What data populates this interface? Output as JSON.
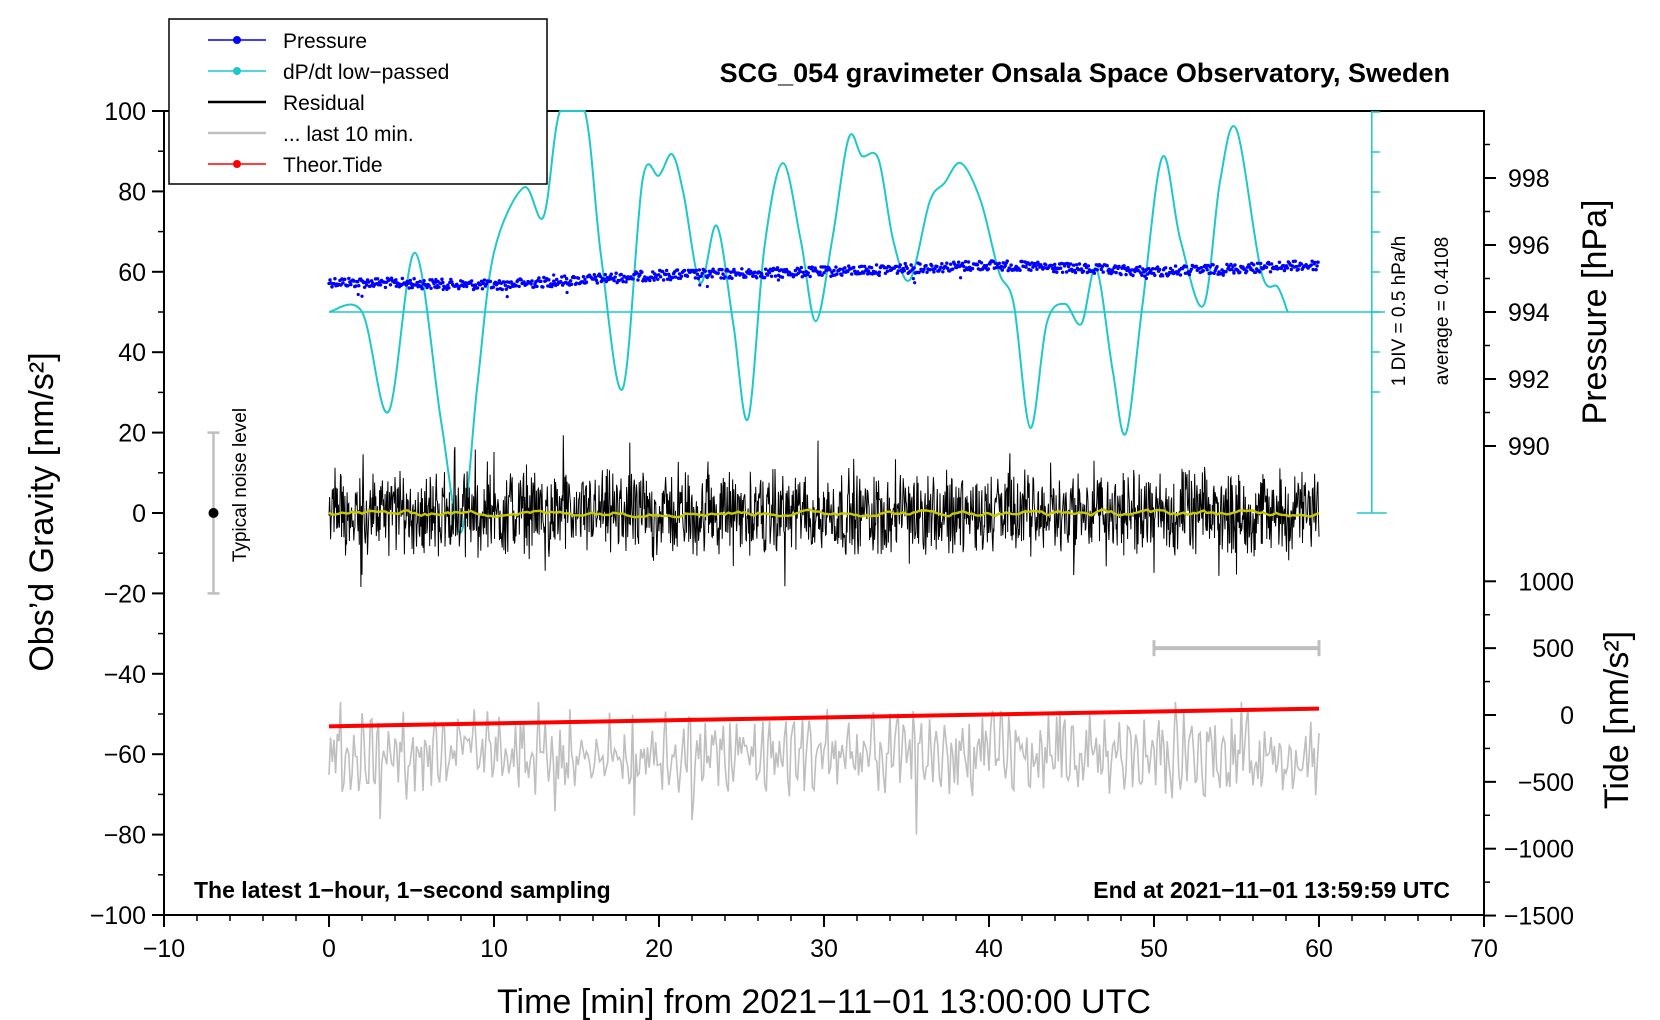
{
  "chart_data": {
    "type": "line",
    "title": "SCG_054 gravimeter Onsala Space Observatory, Sweden",
    "xlabel": "Time [min] from 2021−11−01 13:00:00 UTC",
    "ylabel": "Obs’d Gravity [nm/s²]",
    "ylabel_right_top": "Pressure [hPa]",
    "ylabel_right_bottom": "Tide [nm/s²]",
    "xlim": [
      -10,
      70
    ],
    "ylim": [
      -100,
      100
    ],
    "x_ticks": [
      "−10",
      "0",
      "10",
      "20",
      "30",
      "40",
      "50",
      "60",
      "70"
    ],
    "y_ticks": [
      "−100",
      "−80",
      "−60",
      "−40",
      "−20",
      "0",
      "20",
      "40",
      "60",
      "80",
      "100"
    ],
    "pressure_axis": {
      "ticks": [
        "990",
        "992",
        "994",
        "996",
        "998"
      ],
      "values": [
        990,
        992,
        994,
        996,
        998
      ]
    },
    "tide_axis": {
      "ticks": [
        "−1500",
        "−1000",
        "−500",
        "0",
        "500",
        "1000"
      ],
      "values": [
        -1500,
        -1000,
        -500,
        0,
        500,
        1000
      ]
    },
    "legend": [
      {
        "label": "Pressure",
        "color": "#0000ff",
        "marker": true
      },
      {
        "label": "dP/dt low−passed",
        "color": "#1fc8c8",
        "marker": true
      },
      {
        "label": "Residual",
        "color": "#000000",
        "marker": false
      },
      {
        "label": "... last 10 min.",
        "color": "#bfbfbf",
        "marker": false
      },
      {
        "label": "Theor.Tide",
        "color": "#ff0000",
        "marker": true
      }
    ],
    "series": [
      {
        "name": "Pressure",
        "unit": "hPa",
        "x": [
          0,
          10,
          20,
          30,
          40,
          50,
          60
        ],
        "values": [
          994.9,
          994.8,
          995.1,
          995.2,
          995.4,
          995.2,
          995.4
        ]
      },
      {
        "name": "dP/dt low−passed",
        "unit": "hPa/h (1 DIV = 0.5 hPa/h, baseline = 0.4108)",
        "x": [
          0,
          2,
          3.6,
          5.2,
          6.8,
          8,
          9,
          10,
          11.8,
          13,
          14,
          15.5,
          16.5,
          17.8,
          19,
          20,
          20.8,
          21.5,
          22.5,
          23.5,
          24.5,
          25.4,
          26.4,
          27.5,
          28.6,
          29.5,
          30.5,
          31.5,
          32.3,
          33.3,
          34.2,
          35.2,
          36.4,
          37.3,
          38.3,
          39.5,
          40.6,
          41.5,
          42.5,
          43.5,
          44.6,
          45.6,
          46.5,
          47.5,
          48.3,
          49.3,
          50.5,
          51.6,
          53,
          54,
          55,
          56.5,
          57.5,
          58.1
        ],
        "values": [
          0.411,
          0.411,
          0.161,
          0.559,
          0.136,
          -0.14,
          0.231,
          0.56,
          0.722,
          0.649,
          0.923,
          0.997,
          0.546,
          0.219,
          0.74,
          0.752,
          0.805,
          0.703,
          0.484,
          0.626,
          0.381,
          0.144,
          0.576,
          0.783,
          0.588,
          0.388,
          0.593,
          0.846,
          0.801,
          0.793,
          0.589,
          0.491,
          0.686,
          0.733,
          0.783,
          0.688,
          0.511,
          0.43,
          0.121,
          0.383,
          0.431,
          0.381,
          0.519,
          0.263,
          0.108,
          0.427,
          0.798,
          0.591,
          0.427,
          0.737,
          0.867,
          0.511,
          0.473,
          0.411
        ]
      },
      {
        "name": "Residual",
        "unit": "nm/s²",
        "x": [
          0,
          60
        ],
        "values": [
          0,
          0
        ],
        "spread": [
          -15,
          15
        ],
        "smoothed_color": "#c8c800"
      },
      {
        "name": "... last 10 min.",
        "unit": "nm/s² (replot, offset −60)",
        "x": [
          0,
          60
        ],
        "values": [
          -60,
          -60
        ],
        "spread": [
          -80,
          -48
        ]
      },
      {
        "name": "Theor.Tide",
        "unit": "nm/s²",
        "x": [
          0,
          60
        ],
        "values": [
          -85,
          48
        ]
      }
    ],
    "noise_level": {
      "x": -7,
      "range": [
        -20,
        20
      ],
      "label": "Typical noise level"
    },
    "last_10_min_bar": {
      "x": [
        50,
        60
      ],
      "tide_value": 500
    },
    "dpdt_annotation": {
      "scale": "1 DIV = 0.5 hPa/h",
      "average": "average = 0.4108"
    },
    "footer_left": "The latest 1−hour, 1−second sampling",
    "footer_right": "End at 2021−11−01 13:59:59 UTC"
  }
}
